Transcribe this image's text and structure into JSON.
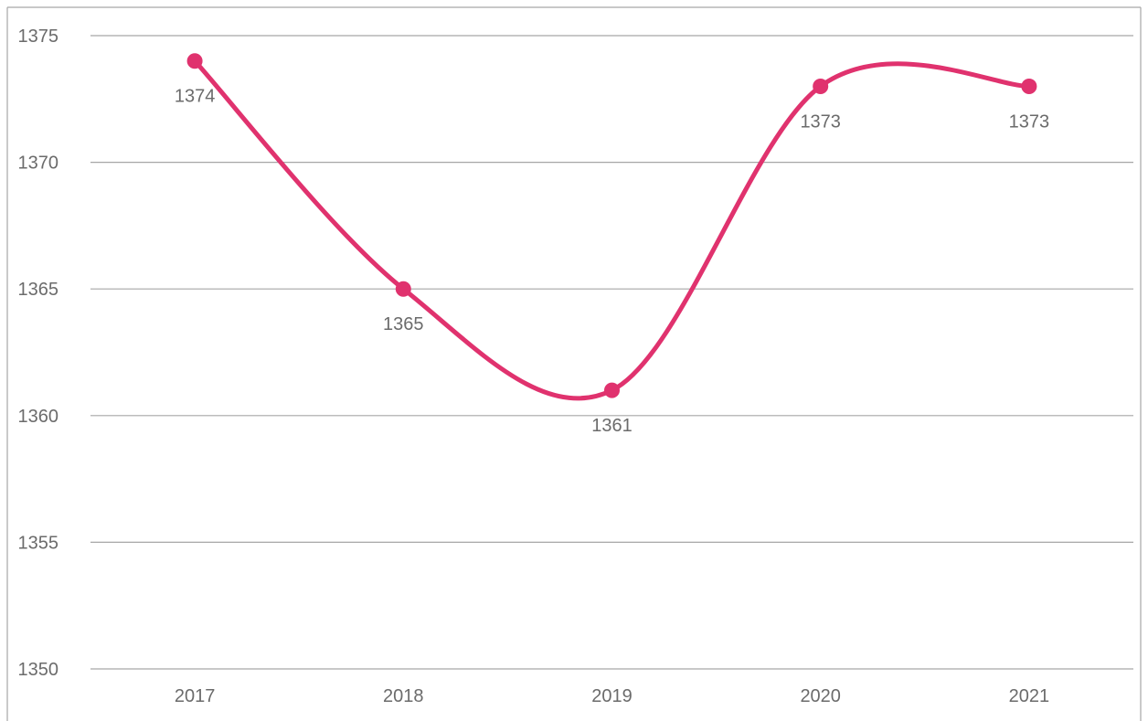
{
  "chart_data": {
    "type": "line",
    "smooth": true,
    "categories": [
      "2017",
      "2018",
      "2019",
      "2020",
      "2021"
    ],
    "series": [
      {
        "values": [
          1374,
          1365,
          1361,
          1373,
          1373
        ],
        "color": "#E0326E",
        "markers": true,
        "data_labels": [
          "1374",
          "1365",
          "1361",
          "1373",
          "1373"
        ]
      }
    ],
    "ylim": [
      1350,
      1375
    ],
    "y_ticks": [
      1350,
      1355,
      1360,
      1365,
      1370,
      1375
    ],
    "y_tick_labels": [
      "1350",
      "1355",
      "1360",
      "1365",
      "1370",
      "1375"
    ],
    "grid": true,
    "title": "",
    "xlabel": "",
    "ylabel": "",
    "legend": "none",
    "colors": {
      "line": "#E0326E",
      "gridline": "#a6a6a6",
      "text": "#6b6b6b",
      "frame": "#a6a6a6"
    }
  }
}
